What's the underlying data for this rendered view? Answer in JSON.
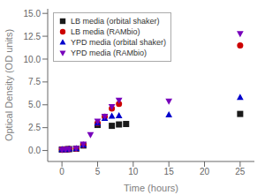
{
  "chart_data": {
    "type": "scatter",
    "xlabel": "Time (hours)",
    "ylabel": "Optical Density (OD units)",
    "xlim": [
      -2,
      27
    ],
    "ylim": [
      -1.2,
      15.5
    ],
    "xticks": [
      0,
      5,
      10,
      15,
      20,
      25
    ],
    "yticks": [
      {
        "value": 0,
        "label": "0.0"
      },
      2.5,
      {
        "value": 5,
        "label": "5.0"
      },
      7.5,
      {
        "value": 10,
        "label": "10.0"
      },
      12.5,
      {
        "value": 15,
        "label": "15.0"
      }
    ],
    "legend": "upper left",
    "series": [
      {
        "name": "LB media (orbital shaker)",
        "color": "#1a1a1a",
        "marker": "square",
        "x": [
          0,
          0.5,
          1,
          2,
          3,
          5,
          7,
          8,
          9,
          25
        ],
        "values": [
          0.1,
          0.12,
          0.15,
          0.2,
          0.55,
          2.8,
          2.7,
          2.85,
          2.9,
          4.0
        ]
      },
      {
        "name": "LB media (RAMbio)",
        "color": "#cc0000",
        "marker": "circle",
        "x": [
          0,
          0.5,
          1,
          2,
          3,
          5,
          6,
          7,
          8,
          25
        ],
        "values": [
          0.1,
          0.12,
          0.15,
          0.2,
          0.6,
          3.0,
          3.7,
          4.6,
          5.1,
          11.5
        ]
      },
      {
        "name": "YPD media (orbital shaker)",
        "color": "#0000cc",
        "marker": "triangle-up",
        "x": [
          0,
          0.5,
          1,
          2,
          3,
          5,
          6,
          7,
          8,
          15,
          25
        ],
        "values": [
          0.1,
          0.12,
          0.15,
          0.2,
          0.6,
          3.0,
          3.5,
          3.75,
          3.8,
          3.9,
          5.8
        ]
      },
      {
        "name": "YPD media (RAMbio)",
        "color": "#7700bb",
        "marker": "triangle-down",
        "x": [
          0,
          0.5,
          1,
          2,
          3,
          4,
          5,
          6,
          7,
          8,
          15,
          25
        ],
        "values": [
          0.1,
          0.12,
          0.15,
          0.25,
          0.7,
          1.75,
          3.2,
          3.75,
          4.8,
          5.5,
          5.4,
          12.8
        ]
      }
    ]
  }
}
